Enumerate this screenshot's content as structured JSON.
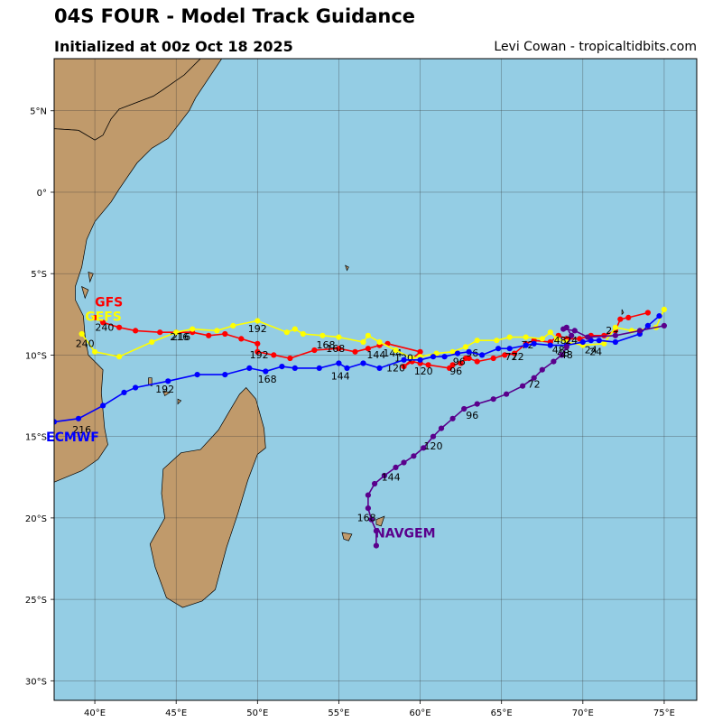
{
  "header": {
    "title": "04S FOUR - Model Track Guidance",
    "subtitle": "Initialized at 00z Oct 18 2025",
    "credit": "Levi Cowan - tropicaltidbits.com"
  },
  "colors": {
    "ocean": "#94cde4",
    "land": "#c09a6b",
    "grid": "#333333",
    "GFS": "#ff0000",
    "GEFS": "#ffff00",
    "ECMWF": "#0000ff",
    "NAVGEM": "#5a008c"
  },
  "map": {
    "lon_range": [
      37.5,
      77.0
    ],
    "lat_range": [
      -31.2,
      8.2
    ],
    "lon_ticks": [
      {
        "v": 40,
        "t": "40°E"
      },
      {
        "v": 45,
        "t": "45°E"
      },
      {
        "v": 50,
        "t": "50°E"
      },
      {
        "v": 55,
        "t": "55°E"
      },
      {
        "v": 60,
        "t": "60°E"
      },
      {
        "v": 65,
        "t": "65°E"
      },
      {
        "v": 70,
        "t": "70°E"
      },
      {
        "v": 75,
        "t": "75°E"
      }
    ],
    "lat_ticks": [
      {
        "v": 5,
        "t": "5°N"
      },
      {
        "v": 0,
        "t": "0°"
      },
      {
        "v": -5,
        "t": "5°S"
      },
      {
        "v": -10,
        "t": "10°S"
      },
      {
        "v": -15,
        "t": "15°S"
      },
      {
        "v": -20,
        "t": "20°S"
      },
      {
        "v": -25,
        "t": "25°S"
      },
      {
        "v": -30,
        "t": "30°S"
      }
    ],
    "africa": [
      [
        37.5,
        8.2
      ],
      [
        46.5,
        8.2
      ],
      [
        45.5,
        7.2
      ],
      [
        44.2,
        6.3
      ],
      [
        43.6,
        5.9
      ],
      [
        41.5,
        5.1
      ],
      [
        41.0,
        4.5
      ],
      [
        40.5,
        3.5
      ],
      [
        40.0,
        3.2
      ],
      [
        39.0,
        3.8
      ],
      [
        37.5,
        3.9
      ]
    ],
    "somalia": [
      [
        37.5,
        3.9
      ],
      [
        39.0,
        3.8
      ],
      [
        40.0,
        3.2
      ],
      [
        40.5,
        3.5
      ],
      [
        41.0,
        4.5
      ],
      [
        41.5,
        5.1
      ],
      [
        43.6,
        5.9
      ],
      [
        44.2,
        6.3
      ],
      [
        45.5,
        7.2
      ],
      [
        46.5,
        8.2
      ],
      [
        47.8,
        8.2
      ],
      [
        47.0,
        7.0
      ],
      [
        46.2,
        5.8
      ],
      [
        45.8,
        5.0
      ],
      [
        44.5,
        3.3
      ],
      [
        43.5,
        2.7
      ],
      [
        42.6,
        1.8
      ],
      [
        41.5,
        0.2
      ],
      [
        41.0,
        -0.6
      ],
      [
        40.0,
        -1.8
      ],
      [
        39.5,
        -2.9
      ],
      [
        39.2,
        -4.6
      ],
      [
        38.8,
        -5.8
      ],
      [
        38.8,
        -6.6
      ],
      [
        39.3,
        -7.6
      ],
      [
        39.4,
        -8.8
      ],
      [
        39.6,
        -10.0
      ],
      [
        40.5,
        -10.9
      ],
      [
        40.4,
        -12.3
      ],
      [
        40.6,
        -14.5
      ],
      [
        40.8,
        -15.5
      ],
      [
        40.2,
        -16.4
      ],
      [
        39.2,
        -17.1
      ],
      [
        37.5,
        -17.8
      ]
    ],
    "madagascar": [
      [
        49.3,
        -12.0
      ],
      [
        49.9,
        -12.7
      ],
      [
        50.4,
        -14.5
      ],
      [
        50.5,
        -15.7
      ],
      [
        50.0,
        -16.1
      ],
      [
        49.4,
        -17.7
      ],
      [
        48.8,
        -19.7
      ],
      [
        48.1,
        -21.8
      ],
      [
        47.4,
        -24.4
      ],
      [
        46.6,
        -25.1
      ],
      [
        45.4,
        -25.5
      ],
      [
        44.4,
        -24.9
      ],
      [
        43.7,
        -23.0
      ],
      [
        43.4,
        -21.6
      ],
      [
        44.3,
        -20.0
      ],
      [
        44.1,
        -18.5
      ],
      [
        44.2,
        -17.0
      ],
      [
        45.3,
        -16.0
      ],
      [
        46.5,
        -15.8
      ],
      [
        47.6,
        -14.6
      ],
      [
        48.3,
        -13.4
      ],
      [
        48.9,
        -12.4
      ]
    ],
    "islands": [
      [
        [
          57.3,
          -20.1
        ],
        [
          57.8,
          -19.9
        ],
        [
          57.6,
          -20.5
        ],
        [
          57.3,
          -20.4
        ]
      ],
      [
        [
          55.2,
          -20.9
        ],
        [
          55.8,
          -21.0
        ],
        [
          55.6,
          -21.4
        ],
        [
          55.3,
          -21.3
        ]
      ],
      [
        [
          44.2,
          -12.2
        ],
        [
          44.6,
          -12.3
        ],
        [
          44.3,
          -12.5
        ]
      ],
      [
        [
          43.3,
          -11.4
        ],
        [
          43.5,
          -11.4
        ],
        [
          43.5,
          -11.9
        ],
        [
          43.3,
          -11.8
        ]
      ],
      [
        [
          39.2,
          -5.8
        ],
        [
          39.6,
          -6.0
        ],
        [
          39.4,
          -6.5
        ]
      ],
      [
        [
          39.6,
          -4.9
        ],
        [
          39.9,
          -5.0
        ],
        [
          39.7,
          -5.5
        ]
      ],
      [
        [
          45.1,
          -12.7
        ],
        [
          45.3,
          -12.8
        ],
        [
          45.1,
          -13.0
        ]
      ],
      [
        [
          55.4,
          -4.5
        ],
        [
          55.6,
          -4.6
        ],
        [
          55.5,
          -4.8
        ]
      ],
      [
        [
          72.4,
          -7.2
        ],
        [
          72.5,
          -7.4
        ],
        [
          72.4,
          -7.5
        ]
      ]
    ]
  },
  "models": [
    {
      "name": "GFS",
      "color": "#ff0000",
      "label": {
        "text": "GFS",
        "lon": 40.0,
        "lat": -7.0
      },
      "points": [
        [
          74.0,
          -7.4
        ],
        [
          72.8,
          -7.7
        ],
        [
          72.3,
          -7.8
        ],
        [
          72.0,
          -8.5
        ],
        [
          71.3,
          -8.8
        ],
        [
          70.5,
          -8.8
        ],
        [
          69.8,
          -9.0
        ],
        [
          69.0,
          -9.0
        ],
        [
          68.5,
          -8.8
        ],
        [
          68.0,
          -9.2
        ],
        [
          67.0,
          -9.1
        ],
        [
          66.5,
          -9.3
        ],
        [
          65.8,
          -9.9
        ],
        [
          65.2,
          -10.0
        ],
        [
          64.5,
          -10.2
        ],
        [
          63.5,
          -10.4
        ],
        [
          63.0,
          -10.2
        ],
        [
          62.8,
          -10.2
        ],
        [
          62.5,
          -10.5
        ],
        [
          62.0,
          -10.6
        ],
        [
          61.8,
          -10.8
        ],
        [
          60.5,
          -10.6
        ],
        [
          60.0,
          -10.5
        ],
        [
          59.5,
          -10.4
        ],
        [
          59.0,
          -10.7
        ],
        [
          60.0,
          -9.8
        ],
        [
          58.0,
          -9.3
        ],
        [
          57.5,
          -9.4
        ],
        [
          56.8,
          -9.6
        ],
        [
          56.0,
          -9.8
        ],
        [
          55.0,
          -9.6
        ],
        [
          53.5,
          -9.7
        ],
        [
          52.0,
          -10.2
        ],
        [
          51.0,
          -10.0
        ],
        [
          50.0,
          -9.8
        ],
        [
          50.0,
          -9.3
        ],
        [
          49.0,
          -9.0
        ],
        [
          48.0,
          -8.7
        ],
        [
          47.0,
          -8.8
        ],
        [
          46.0,
          -8.6
        ],
        [
          45.0,
          -8.6
        ],
        [
          44.0,
          -8.6
        ],
        [
          42.5,
          -8.5
        ],
        [
          41.5,
          -8.3
        ],
        [
          40.5,
          -8.0
        ],
        [
          40.0,
          -7.7
        ]
      ],
      "hours": [
        {
          "t": "24",
          "lon": 71.8,
          "lat": -8.7
        },
        {
          "t": "48",
          "lon": 68.5,
          "lat": -9.9
        },
        {
          "t": "72",
          "lon": 66.0,
          "lat": -10.3
        },
        {
          "t": "96",
          "lon": 62.2,
          "lat": -11.2
        },
        {
          "t": "120",
          "lon": 58.5,
          "lat": -11.0
        },
        {
          "t": "144",
          "lon": 58.3,
          "lat": -10.1
        },
        {
          "t": "168",
          "lon": 54.2,
          "lat": -9.6
        },
        {
          "t": "192",
          "lon": 50.1,
          "lat": -10.2
        },
        {
          "t": "216",
          "lon": 45.3,
          "lat": -9.1
        },
        {
          "t": "240",
          "lon": 40.6,
          "lat": -8.5
        }
      ]
    },
    {
      "name": "GEFS",
      "color": "#ffff00",
      "label": {
        "text": "GEFS",
        "lon": 39.4,
        "lat": -7.9
      },
      "points": [
        [
          75.0,
          -7.2
        ],
        [
          74.5,
          -8.3
        ],
        [
          73.0,
          -8.5
        ],
        [
          72.0,
          -8.3
        ],
        [
          71.3,
          -9.3
        ],
        [
          70.0,
          -9.4
        ],
        [
          69.0,
          -9.2
        ],
        [
          68.4,
          -9.0
        ],
        [
          68.0,
          -8.6
        ],
        [
          67.5,
          -9.0
        ],
        [
          66.5,
          -8.9
        ],
        [
          65.5,
          -8.9
        ],
        [
          64.7,
          -9.1
        ],
        [
          63.5,
          -9.1
        ],
        [
          62.8,
          -9.5
        ],
        [
          62.0,
          -9.8
        ],
        [
          61.0,
          -9.9
        ],
        [
          60.0,
          -10.1
        ],
        [
          59.5,
          -10.2
        ],
        [
          58.5,
          -9.7
        ],
        [
          57.5,
          -9.2
        ],
        [
          56.8,
          -8.8
        ],
        [
          56.5,
          -9.2
        ],
        [
          55.0,
          -8.9
        ],
        [
          54.0,
          -8.8
        ],
        [
          52.8,
          -8.7
        ],
        [
          52.3,
          -8.4
        ],
        [
          51.8,
          -8.6
        ],
        [
          50.0,
          -7.9
        ],
        [
          48.5,
          -8.2
        ],
        [
          47.5,
          -8.5
        ],
        [
          46.0,
          -8.4
        ],
        [
          45.0,
          -8.6
        ],
        [
          43.5,
          -9.2
        ],
        [
          41.5,
          -10.1
        ],
        [
          40.0,
          -9.8
        ],
        [
          39.2,
          -8.7
        ]
      ],
      "hours": [
        {
          "t": "24",
          "lon": 70.5,
          "lat": -9.9
        },
        {
          "t": "48",
          "lon": 68.6,
          "lat": -9.3
        },
        {
          "t": "72",
          "lon": 66.6,
          "lat": -9.6
        },
        {
          "t": "96",
          "lon": 63.2,
          "lat": -10.1
        },
        {
          "t": "120",
          "lon": 59.0,
          "lat": -10.4
        },
        {
          "t": "144",
          "lon": 57.3,
          "lat": -10.2
        },
        {
          "t": "168",
          "lon": 54.8,
          "lat": -9.8
        },
        {
          "t": "192",
          "lon": 50.0,
          "lat": -8.6
        },
        {
          "t": "216",
          "lon": 45.2,
          "lat": -9.1
        },
        {
          "t": "240",
          "lon": 39.4,
          "lat": -9.5
        }
      ]
    },
    {
      "name": "ECMWF",
      "color": "#0000ff",
      "label": {
        "text": "ECMWF",
        "lon": 37.0,
        "lat": -15.3
      },
      "points": [
        [
          74.7,
          -7.6
        ],
        [
          74.0,
          -8.2
        ],
        [
          73.5,
          -8.7
        ],
        [
          72.0,
          -9.2
        ],
        [
          71.0,
          -9.1
        ],
        [
          70.5,
          -9.1
        ],
        [
          70.0,
          -9.2
        ],
        [
          69.0,
          -9.4
        ],
        [
          68.0,
          -9.4
        ],
        [
          67.0,
          -9.3
        ],
        [
          66.5,
          -9.4
        ],
        [
          65.5,
          -9.6
        ],
        [
          64.8,
          -9.6
        ],
        [
          63.8,
          -10.0
        ],
        [
          63.0,
          -9.8
        ],
        [
          62.3,
          -9.9
        ],
        [
          61.5,
          -10.1
        ],
        [
          60.8,
          -10.1
        ],
        [
          60.0,
          -10.3
        ],
        [
          59.0,
          -10.3
        ],
        [
          57.5,
          -10.8
        ],
        [
          56.5,
          -10.5
        ],
        [
          55.5,
          -10.8
        ],
        [
          55.0,
          -10.5
        ],
        [
          53.8,
          -10.8
        ],
        [
          52.3,
          -10.8
        ],
        [
          51.5,
          -10.7
        ],
        [
          50.5,
          -11.0
        ],
        [
          49.5,
          -10.8
        ],
        [
          48.0,
          -11.2
        ],
        [
          46.3,
          -11.2
        ],
        [
          44.5,
          -11.6
        ],
        [
          42.5,
          -12.0
        ],
        [
          41.8,
          -12.3
        ],
        [
          40.5,
          -13.1
        ],
        [
          39.0,
          -13.9
        ],
        [
          37.5,
          -14.1
        ]
      ],
      "hours": [
        {
          "t": "24",
          "lon": 70.8,
          "lat": -10.0
        },
        {
          "t": "48",
          "lon": 68.8,
          "lat": -10.1
        },
        {
          "t": "72",
          "lon": 65.6,
          "lat": -10.3
        },
        {
          "t": "96",
          "lon": 62.4,
          "lat": -10.6
        },
        {
          "t": "120",
          "lon": 60.2,
          "lat": -11.2
        },
        {
          "t": "144",
          "lon": 55.1,
          "lat": -11.5
        },
        {
          "t": "168",
          "lon": 50.6,
          "lat": -11.7
        },
        {
          "t": "192",
          "lon": 44.3,
          "lat": -12.3
        },
        {
          "t": "216",
          "lon": 39.2,
          "lat": -14.8
        }
      ]
    },
    {
      "name": "NAVGEM",
      "color": "#5a008c",
      "label": {
        "text": "NAVGEM",
        "lon": 57.2,
        "lat": -21.2
      },
      "points": [
        [
          75.0,
          -8.2
        ],
        [
          73.5,
          -8.5
        ],
        [
          72.0,
          -8.8
        ],
        [
          70.3,
          -8.9
        ],
        [
          69.5,
          -8.5
        ],
        [
          68.8,
          -8.4
        ],
        [
          69.0,
          -8.3
        ],
        [
          69.3,
          -8.8
        ],
        [
          69.0,
          -9.5
        ],
        [
          68.7,
          -10.0
        ],
        [
          68.2,
          -10.4
        ],
        [
          67.5,
          -10.9
        ],
        [
          67.0,
          -11.4
        ],
        [
          66.3,
          -11.9
        ],
        [
          65.3,
          -12.4
        ],
        [
          64.5,
          -12.7
        ],
        [
          63.5,
          -13.0
        ],
        [
          62.7,
          -13.3
        ],
        [
          62.0,
          -13.9
        ],
        [
          61.3,
          -14.5
        ],
        [
          60.8,
          -15.0
        ],
        [
          60.2,
          -15.7
        ],
        [
          59.6,
          -16.2
        ],
        [
          59.0,
          -16.6
        ],
        [
          58.5,
          -16.9
        ],
        [
          57.8,
          -17.4
        ],
        [
          57.2,
          -17.9
        ],
        [
          56.8,
          -18.6
        ],
        [
          56.8,
          -19.4
        ],
        [
          57.0,
          -20.1
        ],
        [
          57.3,
          -20.8
        ],
        [
          57.3,
          -21.7
        ]
      ],
      "hours": [
        {
          "t": "24",
          "lon": 69.3,
          "lat": -9.3
        },
        {
          "t": "48",
          "lon": 69.0,
          "lat": -10.2
        },
        {
          "t": "72",
          "lon": 67.0,
          "lat": -12.0
        },
        {
          "t": "96",
          "lon": 63.2,
          "lat": -13.9
        },
        {
          "t": "120",
          "lon": 60.8,
          "lat": -15.8
        },
        {
          "t": "144",
          "lon": 58.2,
          "lat": -17.7
        },
        {
          "t": "168",
          "lon": 56.7,
          "lat": -20.2
        }
      ]
    }
  ]
}
